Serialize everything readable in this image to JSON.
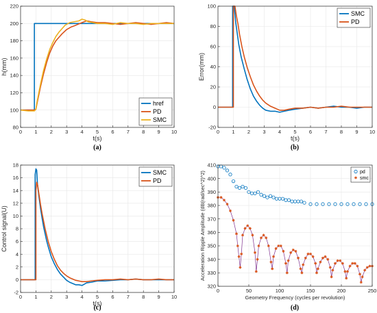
{
  "chart_data": [
    {
      "id": "a",
      "type": "line",
      "caption": "(a)",
      "xlabel": "t(s)",
      "ylabel": "h(mm)",
      "xlim": [
        0,
        10
      ],
      "ylim": [
        80,
        220
      ],
      "xticks": [
        0,
        1,
        2,
        3,
        4,
        5,
        6,
        7,
        8,
        9,
        10
      ],
      "yticks": [
        80,
        100,
        120,
        140,
        160,
        180,
        200,
        220
      ],
      "grid": true,
      "legend": "bottom-right",
      "series": [
        {
          "name": "href",
          "color": "#0072BD",
          "x": [
            0,
            0.9,
            0.9,
            10
          ],
          "y": [
            100,
            100,
            200,
            200
          ]
        },
        {
          "name": "PD",
          "color": "#D95319",
          "x": [
            0,
            0.5,
            0.9,
            1.0,
            1.1,
            1.3,
            1.5,
            1.7,
            1.9,
            2.1,
            2.3,
            2.5,
            2.7,
            3.0,
            3.3,
            3.6,
            4.0,
            4.3,
            4.6,
            5.0,
            5.5,
            6.0,
            6.5,
            7.0,
            7.5,
            8.0,
            8.5,
            9.0,
            9.5,
            10.0
          ],
          "y": [
            100,
            100,
            100,
            101,
            110,
            127,
            142,
            155,
            166,
            174,
            180,
            184,
            188,
            193,
            196,
            198,
            201,
            203,
            202,
            201,
            201,
            200,
            199,
            200,
            201,
            200,
            199,
            200,
            201,
            200
          ]
        },
        {
          "name": "SMC",
          "color": "#EDB120",
          "x": [
            0,
            0.5,
            0.9,
            1.0,
            1.1,
            1.3,
            1.5,
            1.7,
            1.9,
            2.1,
            2.3,
            2.5,
            2.7,
            2.9,
            3.2,
            3.5,
            3.8,
            4.0,
            4.2,
            4.4,
            4.7,
            5.0,
            5.5,
            6.0,
            6.5,
            7.0,
            7.5,
            8.0,
            8.5,
            9.0,
            9.5,
            10.0
          ],
          "y": [
            100,
            99,
            99,
            101,
            112,
            130,
            146,
            159,
            170,
            178,
            185,
            190,
            194,
            198,
            201,
            202,
            203,
            205,
            204,
            202,
            201,
            200,
            200,
            199,
            201,
            200,
            200,
            199,
            200,
            200,
            200,
            200
          ]
        }
      ]
    },
    {
      "id": "b",
      "type": "line",
      "caption": "(b)",
      "xlabel": "t(s)",
      "ylabel": "Error(mm)",
      "xlim": [
        0,
        10
      ],
      "ylim": [
        -20,
        100
      ],
      "xticks": [
        0,
        1,
        2,
        3,
        4,
        5,
        6,
        7,
        8,
        9,
        10
      ],
      "yticks": [
        -20,
        0,
        20,
        40,
        60,
        80,
        100
      ],
      "grid": true,
      "legend": "top-right",
      "series": [
        {
          "name": "SMC",
          "color": "#0072BD",
          "x": [
            0,
            0.5,
            0.95,
            0.95,
            1.05,
            1.15,
            1.25,
            1.35,
            1.5,
            1.7,
            1.9,
            2.1,
            2.3,
            2.5,
            2.7,
            2.9,
            3.1,
            3.4,
            3.7,
            4.0,
            4.3,
            4.6,
            5.0,
            5.5,
            6.0,
            6.5,
            7.0,
            7.5,
            8.0,
            8.5,
            9.0,
            9.5,
            10.0
          ],
          "y": [
            0,
            0,
            0,
            100,
            100,
            84,
            73,
            62,
            50,
            38,
            27,
            18,
            11,
            6,
            2,
            -1,
            -3,
            -4,
            -4,
            -5,
            -4,
            -3,
            -2,
            -1,
            0,
            -1,
            0,
            1,
            0,
            0,
            -1,
            0,
            0
          ]
        },
        {
          "name": "PD",
          "color": "#D95319",
          "x": [
            0,
            0.5,
            1.0,
            1.0,
            1.1,
            1.2,
            1.3,
            1.4,
            1.55,
            1.7,
            1.9,
            2.1,
            2.3,
            2.5,
            2.7,
            2.9,
            3.1,
            3.4,
            3.7,
            4.0,
            4.3,
            4.6,
            5.0,
            5.5,
            6.0,
            6.5,
            7.0,
            7.5,
            8.0,
            8.5,
            9.0,
            9.5,
            10.0
          ],
          "y": [
            0,
            0,
            0,
            100,
            100,
            90,
            82,
            72,
            60,
            50,
            39,
            30,
            22,
            16,
            11,
            7,
            4,
            1,
            -1,
            -3,
            -3,
            -2,
            -1,
            -1,
            0,
            -1,
            0,
            0,
            1,
            0,
            0,
            0,
            0
          ]
        }
      ]
    },
    {
      "id": "c",
      "type": "line",
      "caption": "(c)",
      "xlabel": "t(s)",
      "ylabel": "Control signal(U)",
      "xlim": [
        0,
        10
      ],
      "ylim": [
        -2,
        18
      ],
      "xticks": [
        0,
        1,
        2,
        3,
        4,
        5,
        6,
        7,
        8,
        9,
        10
      ],
      "yticks": [
        -2,
        0,
        2,
        4,
        6,
        8,
        10,
        12,
        14,
        16,
        18
      ],
      "grid": true,
      "legend": "top-right",
      "series": [
        {
          "name": "SMC",
          "color": "#0072BD",
          "x": [
            0,
            0.5,
            0.95,
            0.95,
            1.0,
            1.05,
            1.1,
            1.2,
            1.3,
            1.4,
            1.5,
            1.6,
            1.7,
            1.8,
            1.9,
            2.0,
            2.2,
            2.4,
            2.6,
            2.8,
            3.0,
            3.2,
            3.4,
            3.6,
            3.8,
            4.0,
            4.3,
            4.6,
            5.0,
            5.5,
            6.0,
            6.5,
            7.0,
            7.5,
            8.0,
            8.5,
            9.0,
            9.5,
            10.0
          ],
          "y": [
            0,
            0,
            0,
            16.5,
            17.4,
            17.2,
            15.0,
            13.0,
            11.2,
            9.7,
            8.3,
            7.2,
            6.1,
            5.2,
            4.4,
            3.6,
            2.5,
            1.6,
            0.9,
            0.4,
            -0.1,
            -0.4,
            -0.6,
            -0.8,
            -0.8,
            -0.9,
            -0.5,
            -0.4,
            -0.2,
            -0.2,
            -0.1,
            0,
            0,
            0.1,
            0,
            0,
            0,
            0,
            0
          ]
        },
        {
          "name": "PD",
          "color": "#D95319",
          "x": [
            0,
            0.5,
            1.0,
            1.0,
            1.05,
            1.1,
            1.2,
            1.3,
            1.4,
            1.5,
            1.6,
            1.7,
            1.8,
            1.9,
            2.0,
            2.2,
            2.4,
            2.6,
            2.8,
            3.0,
            3.2,
            3.4,
            3.6,
            3.8,
            4.0,
            4.3,
            4.6,
            5.0,
            5.5,
            6.0,
            6.5,
            7.0,
            7.5,
            8.0,
            8.5,
            9.0,
            9.5,
            10.0
          ],
          "y": [
            0,
            0,
            0,
            14.0,
            15.3,
            15.0,
            13.4,
            11.8,
            10.4,
            9.2,
            8.0,
            7.0,
            6.0,
            5.2,
            4.4,
            3.2,
            2.2,
            1.5,
            1.0,
            0.6,
            0.3,
            0.1,
            -0.1,
            -0.2,
            -0.3,
            -0.3,
            -0.2,
            -0.1,
            0,
            0,
            0.1,
            0,
            0.1,
            0,
            0,
            0.1,
            0,
            0
          ]
        }
      ]
    },
    {
      "id": "d",
      "type": "scatter",
      "caption": "(d)",
      "xlabel": "Geometry Frequency (cycles per revolution)",
      "ylabel": "Acceleration Ripple Amplitude (dB(rad/sec^2)^2)",
      "xlim": [
        0,
        250
      ],
      "ylim": [
        320,
        410
      ],
      "xticks": [
        0,
        50,
        100,
        150,
        200,
        250
      ],
      "yticks": [
        320,
        330,
        340,
        350,
        360,
        370,
        380,
        390,
        400,
        410
      ],
      "grid": true,
      "legend": "top-right",
      "series": [
        {
          "name": "pd",
          "color": "#0072BD",
          "marker": "circle",
          "x": [
            0,
            5,
            10,
            15,
            20,
            25,
            30,
            35,
            40,
            45,
            50,
            55,
            60,
            65,
            70,
            75,
            80,
            85,
            90,
            95,
            100,
            105,
            110,
            115,
            120,
            125,
            130,
            135,
            140,
            150,
            160,
            170,
            180,
            190,
            200,
            210,
            220,
            230,
            240,
            250
          ],
          "y": [
            409,
            409,
            408,
            406,
            403,
            398,
            394,
            393,
            394,
            393,
            390,
            389,
            389,
            390,
            388,
            387,
            386,
            387,
            386,
            385,
            385,
            385,
            384,
            384,
            383,
            383,
            383,
            383,
            382,
            381,
            381,
            381,
            381,
            381,
            381,
            381,
            381,
            381,
            381,
            381
          ]
        },
        {
          "name": "smc",
          "color": "#D95319",
          "marker": "star",
          "x": [
            0,
            5,
            10,
            15,
            20,
            25,
            30,
            32,
            34,
            36,
            38,
            40,
            44,
            48,
            52,
            56,
            60,
            62,
            64,
            66,
            70,
            74,
            78,
            82,
            86,
            88,
            90,
            94,
            98,
            102,
            106,
            110,
            112,
            114,
            118,
            122,
            126,
            130,
            134,
            136,
            138,
            142,
            146,
            150,
            154,
            158,
            160,
            162,
            166,
            170,
            174,
            178,
            182,
            184,
            186,
            190,
            194,
            198,
            202,
            206,
            208,
            210,
            214,
            218,
            222,
            226,
            230,
            232,
            234,
            238,
            242,
            246,
            250
          ],
          "y": [
            386,
            386,
            384,
            381,
            376,
            369,
            359,
            350,
            342,
            334,
            344,
            358,
            363,
            365,
            363,
            358,
            345,
            331,
            340,
            350,
            356,
            358,
            356,
            350,
            338,
            333,
            342,
            348,
            350,
            350,
            346,
            337,
            330,
            339,
            345,
            347,
            346,
            341,
            333,
            330,
            336,
            341,
            344,
            344,
            342,
            337,
            330,
            333,
            338,
            341,
            342,
            340,
            334,
            327,
            332,
            337,
            339,
            339,
            337,
            331,
            326,
            331,
            335,
            337,
            337,
            335,
            329,
            323,
            327,
            332,
            334,
            335,
            335
          ]
        }
      ]
    }
  ]
}
